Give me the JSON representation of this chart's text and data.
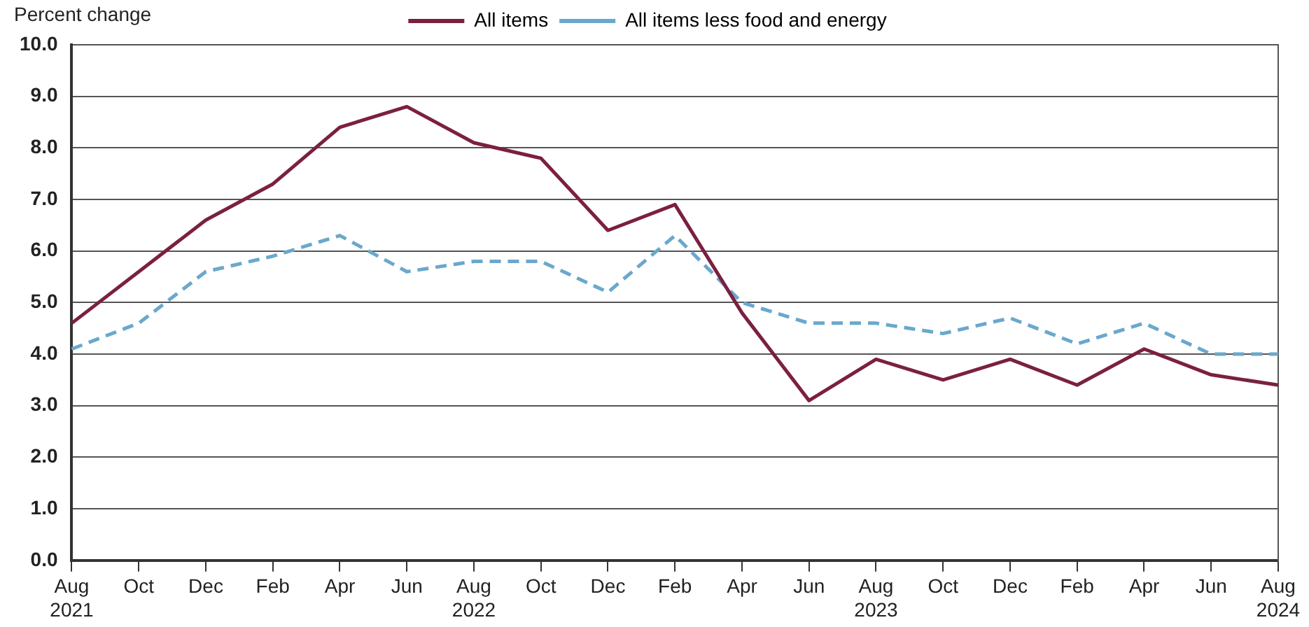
{
  "chart_data": {
    "type": "line",
    "ylabel": "Percent change",
    "categories": [
      "Aug\n2021",
      "Oct",
      "Dec",
      "Feb",
      "Apr",
      "Jun",
      "Aug\n2022",
      "Oct",
      "Dec",
      "Feb",
      "Apr",
      "Jun",
      "Aug\n2023",
      "Oct",
      "Dec",
      "Feb",
      "Apr",
      "Jun",
      "Aug\n2024"
    ],
    "series": [
      {
        "name": "All items",
        "color": "#7b2040",
        "line_style": "solid",
        "values": [
          4.6,
          5.6,
          6.6,
          7.3,
          8.4,
          8.8,
          8.1,
          7.8,
          6.4,
          6.9,
          4.8,
          3.1,
          3.9,
          3.5,
          3.9,
          3.4,
          4.1,
          3.6,
          3.4
        ]
      },
      {
        "name": "All items less food and energy",
        "color": "#6aa8cc",
        "line_style": "dashed",
        "values": [
          4.1,
          4.6,
          5.6,
          5.9,
          6.3,
          5.6,
          5.8,
          5.8,
          5.2,
          6.3,
          5.0,
          4.6,
          4.6,
          4.4,
          4.7,
          4.2,
          4.6,
          4.0,
          4.0
        ]
      }
    ],
    "ylim": [
      0,
      10
    ],
    "yticks": [
      {
        "value": 0,
        "label": "0.0"
      },
      {
        "value": 1,
        "label": "1.0"
      },
      {
        "value": 2,
        "label": "2.0"
      },
      {
        "value": 3,
        "label": "3.0"
      },
      {
        "value": 4,
        "label": "4.0"
      },
      {
        "value": 5,
        "label": "5.0"
      },
      {
        "value": 6,
        "label": "6.0"
      },
      {
        "value": 7,
        "label": "7.0"
      },
      {
        "value": 8,
        "label": "8.0"
      },
      {
        "value": 9,
        "label": "9.0"
      },
      {
        "value": 10,
        "label": "10.0"
      }
    ],
    "grid": "y",
    "legend": "top",
    "marker": "none"
  }
}
